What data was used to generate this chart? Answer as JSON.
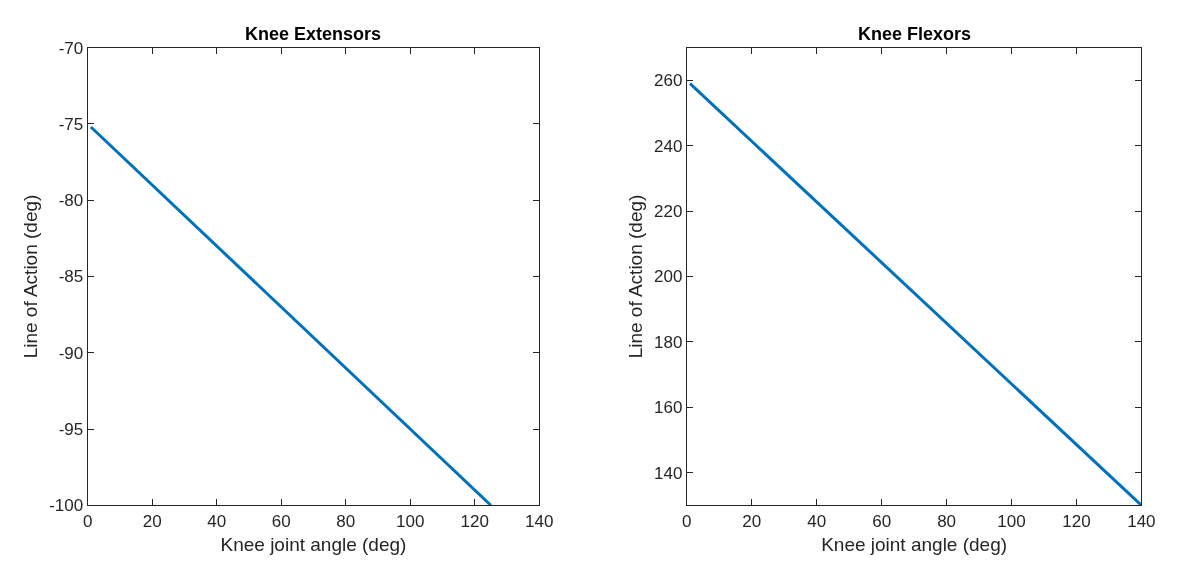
{
  "chart_data": [
    {
      "type": "line",
      "title": "Knee Extensors",
      "xlabel": "Knee joint angle (deg)",
      "ylabel": "Line of Action (deg)",
      "x": [
        1,
        125
      ],
      "series": [
        {
          "color": "#0072bd",
          "values": [
            -75.2,
            -100
          ]
        }
      ],
      "xlim": [
        0,
        140
      ],
      "xticks": [
        0,
        20,
        40,
        60,
        80,
        100,
        120,
        140
      ],
      "ylim": [
        -100,
        -70
      ],
      "yticks": [
        -100,
        -95,
        -90,
        -85,
        -80,
        -75,
        -70
      ]
    },
    {
      "type": "line",
      "title": "Knee Flexors",
      "xlabel": "Knee joint angle (deg)",
      "ylabel": "Line of Action (deg)",
      "x": [
        1,
        140
      ],
      "series": [
        {
          "color": "#0072bd",
          "values": [
            259,
            130
          ]
        }
      ],
      "xlim": [
        0,
        140
      ],
      "xticks": [
        0,
        20,
        40,
        60,
        80,
        100,
        120,
        140
      ],
      "ylim": [
        130,
        270
      ],
      "yticks": [
        140,
        160,
        180,
        200,
        220,
        240,
        260
      ]
    }
  ]
}
